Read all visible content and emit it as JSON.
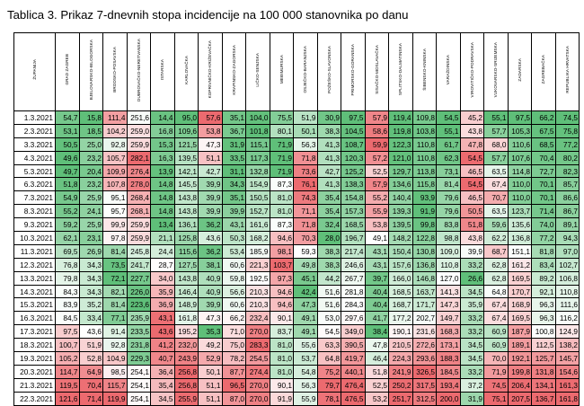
{
  "title": "Tablica 3. Prikaz 7-dnevnih stopa incidencije na 100 000 stanovnika po danu",
  "table": {
    "columns": [
      "ŽUPANIJA",
      "GRAD ZAGREB",
      "BJELOVARSKO-BILOGORSKA",
      "BRODSKO-POSAVSKA",
      "DUBROVAČKO-NERETVANSKA",
      "ISTARSKA",
      "KARLOVAČKA",
      "KOPRIVNIČKO-KRIŽEVAČKA",
      "KRAPINSKO-ZAGORSKA",
      "LIČKO-SENJSKA",
      "MEĐIMURSKA",
      "OSJEČKO-BARANJSKA",
      "POŽEŠKO-SLAVONSKA",
      "PRIMORSKO-GORANSKA",
      "SISAČKO-MOSLAVAČKA",
      "SPLITSKO-DALMATINSKA",
      "ŠIBENSKO-KNINSKA",
      "VARAŽDINSKA",
      "VIROVITIČKO-PODRAVSKA",
      "VUKOVARSKO-SRIJEMSKA",
      "ZADARSKA",
      "ZAGREBAČKA",
      "REPUBLIKA HRVATSKA"
    ],
    "rows": [
      [
        "1.3.2021",
        "54,7",
        "15,8",
        "111,4",
        "251,6",
        "14,4",
        "95,0",
        "57,6",
        "35,1",
        "104,0",
        "75,5",
        "51,9",
        "30,9",
        "97,5",
        "57,9",
        "119,4",
        "109,8",
        "54,5",
        "45,2",
        "55,1",
        "97,5",
        "66,2",
        "74,5"
      ],
      [
        "2.3.2021",
        "53,1",
        "18,5",
        "104,2",
        "259,0",
        "16,8",
        "109,6",
        "53,8",
        "36,7",
        "101,8",
        "80,1",
        "50,1",
        "38,3",
        "104,5",
        "58,6",
        "119,8",
        "103,8",
        "55,1",
        "43,8",
        "57,7",
        "105,3",
        "67,5",
        "75,8"
      ],
      [
        "3.3.2021",
        "50,5",
        "25,0",
        "92,8",
        "259,9",
        "15,3",
        "121,5",
        "47,3",
        "31,9",
        "115,1",
        "71,9",
        "56,3",
        "41,3",
        "108,7",
        "59,9",
        "122,3",
        "110,8",
        "61,7",
        "47,8",
        "68,0",
        "110,6",
        "68,5",
        "77,2"
      ],
      [
        "4.3.2021",
        "49,6",
        "23,2",
        "105,7",
        "282,1",
        "16,3",
        "139,5",
        "51,1",
        "33,5",
        "117,3",
        "71,9",
        "71,8",
        "41,3",
        "120,3",
        "57,2",
        "121,0",
        "110,8",
        "62,3",
        "54,5",
        "57,7",
        "107,6",
        "70,4",
        "80,2"
      ],
      [
        "5.3.2021",
        "49,7",
        "20,4",
        "109,9",
        "276,4",
        "13,9",
        "142,1",
        "42,7",
        "31,1",
        "132,8",
        "71,9",
        "73,6",
        "42,7",
        "125,2",
        "52,5",
        "129,7",
        "113,8",
        "73,1",
        "46,5",
        "63,5",
        "114,8",
        "72,7",
        "82,3"
      ],
      [
        "6.3.2021",
        "51,8",
        "23,2",
        "107,8",
        "278,0",
        "14,8",
        "145,5",
        "39,9",
        "34,3",
        "154,9",
        "87,3",
        "76,1",
        "41,3",
        "138,3",
        "57,9",
        "134,6",
        "115,8",
        "81,4",
        "54,5",
        "67,4",
        "110,0",
        "70,1",
        "85,7"
      ],
      [
        "7.3.2021",
        "54,9",
        "25,9",
        "95,1",
        "268,4",
        "14,8",
        "143,8",
        "39,9",
        "35,1",
        "150,5",
        "81,0",
        "74,3",
        "35,4",
        "154,8",
        "55,2",
        "140,4",
        "93,9",
        "79,6",
        "46,5",
        "70,7",
        "110,0",
        "70,1",
        "86,6"
      ],
      [
        "8.3.2021",
        "55,2",
        "24,1",
        "95,7",
        "268,1",
        "14,8",
        "143,8",
        "39,9",
        "39,9",
        "152,7",
        "81,0",
        "71,1",
        "35,4",
        "157,3",
        "55,9",
        "139,3",
        "91,9",
        "79,6",
        "50,5",
        "63,5",
        "123,7",
        "71,4",
        "86,7"
      ],
      [
        "9.3.2021",
        "59,2",
        "25,9",
        "99,9",
        "259,9",
        "13,4",
        "136,1",
        "36,2",
        "43,1",
        "161,6",
        "87,3",
        "71,8",
        "32,4",
        "168,5",
        "53,8",
        "139,5",
        "99,8",
        "83,8",
        "51,8",
        "59,6",
        "135,6",
        "74,0",
        "89,1"
      ],
      [
        "10.3.2021",
        "62,1",
        "23,1",
        "97,8",
        "259,9",
        "21,1",
        "125,8",
        "43,6",
        "50,3",
        "168,2",
        "94,6",
        "70,3",
        "28,0",
        "196,7",
        "49,1",
        "148,2",
        "122,8",
        "98,8",
        "43,8",
        "62,2",
        "136,8",
        "77,2",
        "94,3"
      ],
      [
        "11.3.2021",
        "69,5",
        "26,9",
        "81,4",
        "245,8",
        "24,4",
        "115,6",
        "36,2",
        "53,4",
        "185,9",
        "98,1",
        "59,3",
        "38,3",
        "217,4",
        "43,1",
        "150,4",
        "130,8",
        "109,0",
        "39,9",
        "68,7",
        "151,1",
        "81,8",
        "97,0"
      ],
      [
        "12.3.2021",
        "76,8",
        "34,3",
        "73,5",
        "241,7",
        "28,7",
        "127,5",
        "38,1",
        "60,6",
        "221,3",
        "103,7",
        "49,8",
        "38,3",
        "246,6",
        "43,1",
        "157,6",
        "136,8",
        "110,8",
        "33,2",
        "62,8",
        "161,2",
        "83,4",
        "102,7"
      ],
      [
        "13.3.2021",
        "79,8",
        "34,3",
        "72,1",
        "227,7",
        "34,0",
        "143,8",
        "40,9",
        "59,8",
        "192,5",
        "97,3",
        "45,1",
        "44,2",
        "267,7",
        "39,7",
        "166,0",
        "146,8",
        "127,0",
        "26,6",
        "62,8",
        "169,5",
        "89,2",
        "106,8"
      ],
      [
        "14.3.2021",
        "84,3",
        "34,3",
        "82,1",
        "226,0",
        "35,9",
        "146,4",
        "40,9",
        "56,6",
        "210,3",
        "94,6",
        "42,4",
        "51,6",
        "281,8",
        "40,4",
        "168,5",
        "163,7",
        "141,3",
        "34,5",
        "64,8",
        "170,7",
        "92,1",
        "110,8"
      ],
      [
        "15.3.2021",
        "83,9",
        "35,2",
        "81,4",
        "223,6",
        "36,9",
        "148,9",
        "39,9",
        "60,6",
        "210,3",
        "94,6",
        "47,3",
        "51,6",
        "284,3",
        "40,4",
        "168,7",
        "171,7",
        "147,3",
        "35,9",
        "67,4",
        "168,9",
        "96,3",
        "111,6"
      ],
      [
        "16.3.2021",
        "84,5",
        "33,4",
        "77,1",
        "235,9",
        "43,1",
        "161,8",
        "47,3",
        "66,2",
        "232,4",
        "90,1",
        "49,1",
        "53,0",
        "297,6",
        "41,7",
        "177,2",
        "202,7",
        "149,7",
        "33,2",
        "67,4",
        "169,5",
        "96,3",
        "116,2"
      ],
      [
        "17.3.2021",
        "97,5",
        "43,6",
        "91,4",
        "233,5",
        "43,6",
        "195,2",
        "35,3",
        "71,0",
        "270,0",
        "83,7",
        "49,1",
        "54,5",
        "349,0",
        "38,4",
        "190,1",
        "231,6",
        "168,3",
        "33,2",
        "60,9",
        "187,9",
        "100,8",
        "124,9"
      ],
      [
        "18.3.2021",
        "100,7",
        "51,9",
        "92,8",
        "231,8",
        "41,2",
        "232,0",
        "49,2",
        "75,0",
        "283,3",
        "81,0",
        "55,6",
        "63,3",
        "390,5",
        "47,8",
        "210,5",
        "272,6",
        "173,1",
        "34,5",
        "60,9",
        "189,1",
        "112,5",
        "138,2"
      ],
      [
        "19.3.2021",
        "105,2",
        "52,8",
        "104,9",
        "229,3",
        "40,7",
        "243,9",
        "52,9",
        "78,2",
        "254,5",
        "81,0",
        "53,7",
        "64,8",
        "419,7",
        "46,4",
        "224,3",
        "293,6",
        "188,3",
        "34,5",
        "70,0",
        "192,1",
        "125,7",
        "145,7"
      ],
      [
        "20.3.2021",
        "114,7",
        "64,9",
        "98,5",
        "254,1",
        "36,4",
        "256,8",
        "50,1",
        "87,7",
        "274,4",
        "81,0",
        "54,8",
        "75,2",
        "440,1",
        "51,8",
        "241,9",
        "326,5",
        "184,5",
        "33,2",
        "71,9",
        "199,8",
        "131,8",
        "154,6"
      ],
      [
        "21.3.2021",
        "119,5",
        "70,4",
        "115,7",
        "254,1",
        "35,4",
        "256,8",
        "51,1",
        "96,5",
        "270,0",
        "90,1",
        "56,3",
        "79,7",
        "476,4",
        "52,5",
        "250,2",
        "317,5",
        "193,4",
        "37,2",
        "74,5",
        "206,4",
        "134,1",
        "161,3"
      ],
      [
        "22.3.2021",
        "121,6",
        "71,4",
        "119,9",
        "254,1",
        "34,5",
        "255,9",
        "51,1",
        "87,0",
        "270,0",
        "91,9",
        "55,9",
        "78,1",
        "476,5",
        "53,2",
        "251,7",
        "312,5",
        "200,0",
        "31,9",
        "75,1",
        "207,5",
        "136,7",
        "161,8"
      ]
    ]
  },
  "colors": {
    "scale_low": "#5fbf79",
    "scale_mid": "#ffffff",
    "scale_high": "#ec6a6f"
  }
}
